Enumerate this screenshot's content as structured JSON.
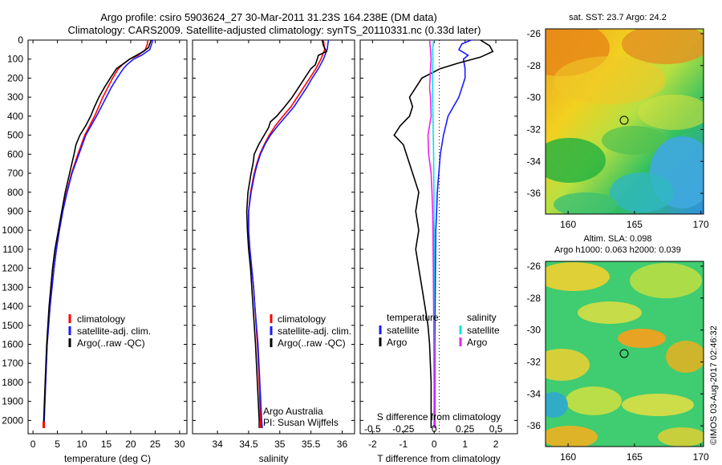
{
  "header": {
    "line1": "Argo profile: csiro 5903624_27 30-Mar-2011 31.23S 164.238E (DM data)",
    "line2": "Climatology: CARS2009. Satellite-adjusted climatology: synTS_20110331.nc (0.33d later)"
  },
  "footer": {
    "credit": "©IMOS 03-Aug-2017 02:46:32"
  },
  "colors": {
    "climatology": "#ff0000",
    "satellite": "#1a1aff",
    "argo": "#000000",
    "s_satellite": "#00e5e5",
    "s_argo": "#ee22ee"
  },
  "chart_data": [
    {
      "id": "temperature",
      "type": "line",
      "xlabel": "temperature (deg C)",
      "xlim": [
        -1,
        31.5
      ],
      "xticks": [
        0,
        5,
        10,
        15,
        20,
        25,
        30
      ],
      "ylim": [
        2070,
        0
      ],
      "yticks": [
        0,
        100,
        200,
        300,
        400,
        500,
        600,
        700,
        800,
        900,
        1000,
        1100,
        1200,
        1300,
        1400,
        1500,
        1600,
        1700,
        1800,
        1900,
        2000
      ],
      "legend": [
        "climatology",
        "satellite-adj. clim.",
        "Argo(..raw -QC)"
      ],
      "legend_position": "center",
      "series": [
        {
          "name": "climatology",
          "color": "#ff0000",
          "depth": [
            0,
            20,
            50,
            80,
            100,
            130,
            150,
            200,
            250,
            300,
            400,
            500,
            600,
            700,
            800,
            900,
            1000,
            1100,
            1200,
            1400,
            1600,
            1800,
            2000,
            2040
          ],
          "values": [
            23.5,
            23.4,
            23.0,
            21.5,
            19.8,
            18.3,
            17.5,
            16.3,
            15.3,
            14.3,
            12.6,
            10.6,
            9.2,
            7.9,
            6.9,
            6.1,
            5.4,
            4.8,
            4.3,
            3.5,
            2.9,
            2.6,
            2.3,
            2.2
          ]
        },
        {
          "name": "satellite-adj. clim.",
          "color": "#1a1aff",
          "depth": [
            0,
            20,
            50,
            80,
            100,
            130,
            150,
            200,
            250,
            300,
            400,
            500,
            600,
            700,
            800,
            900,
            1000,
            1100,
            1200,
            1400,
            1600,
            1800,
            2000,
            2040
          ],
          "values": [
            24.5,
            24.3,
            23.9,
            22.2,
            20.6,
            19.2,
            18.5,
            17.2,
            16.0,
            15.0,
            13.0,
            10.8,
            9.4,
            8.0,
            7.0,
            6.1,
            5.4,
            4.8,
            4.3,
            3.5,
            2.9,
            2.6,
            2.3,
            2.2
          ]
        },
        {
          "name": "Argo(..raw -QC)",
          "color": "#000000",
          "depth": [
            0,
            20,
            40,
            60,
            80,
            100,
            130,
            150,
            200,
            250,
            300,
            350,
            400,
            450,
            500,
            550,
            600,
            700,
            800,
            900,
            1000,
            1100,
            1200,
            1400,
            1600,
            1800,
            2000,
            2040
          ],
          "values": [
            24.2,
            23.9,
            23.6,
            22.6,
            21.2,
            19.8,
            18.2,
            17.1,
            15.8,
            14.6,
            13.5,
            12.6,
            11.8,
            10.8,
            9.6,
            8.8,
            8.4,
            7.5,
            6.6,
            5.9,
            5.2,
            4.5,
            4.0,
            3.3,
            2.8,
            2.5,
            2.2,
            2.2
          ]
        }
      ]
    },
    {
      "id": "salinity",
      "type": "line",
      "xlabel": "salinity",
      "xlim": [
        33.6,
        36.2
      ],
      "xticks": [
        34,
        34.5,
        35,
        35.5,
        36
      ],
      "ylim": [
        2070,
        0
      ],
      "legend": [
        "climatology",
        "satellite-adj. clim.",
        "Argo(..raw -QC)"
      ],
      "legend_position": "center",
      "annotations": [
        "Argo Australia",
        "PI: Susan Wijffels"
      ],
      "series": [
        {
          "name": "climatology",
          "color": "#ff0000",
          "depth": [
            0,
            50,
            100,
            150,
            200,
            250,
            300,
            350,
            400,
            450,
            500,
            550,
            600,
            650,
            700,
            800,
            900,
            1000,
            1100,
            1200,
            1300,
            1400,
            1600,
            1800,
            2000,
            2040
          ],
          "values": [
            35.7,
            35.72,
            35.66,
            35.58,
            35.48,
            35.38,
            35.28,
            35.18,
            35.05,
            34.93,
            34.83,
            34.75,
            34.68,
            34.63,
            34.59,
            34.53,
            34.5,
            34.5,
            34.52,
            34.55,
            34.58,
            34.6,
            34.64,
            34.67,
            34.69,
            34.7
          ]
        },
        {
          "name": "satellite-adj. clim.",
          "color": "#1a1aff",
          "depth": [
            0,
            50,
            100,
            150,
            200,
            250,
            300,
            350,
            400,
            450,
            500,
            550,
            600,
            650,
            700,
            800,
            900,
            1000,
            1100,
            1200,
            1300,
            1400,
            1600,
            1800,
            2000,
            2040
          ],
          "values": [
            35.78,
            35.76,
            35.7,
            35.62,
            35.52,
            35.43,
            35.33,
            35.23,
            35.1,
            34.97,
            34.85,
            34.76,
            34.69,
            34.64,
            34.6,
            34.54,
            34.5,
            34.5,
            34.52,
            34.55,
            34.58,
            34.6,
            34.65,
            34.68,
            34.71,
            34.72
          ]
        },
        {
          "name": "Argo(..raw -QC)",
          "color": "#000000",
          "depth": [
            0,
            30,
            60,
            80,
            100,
            130,
            150,
            200,
            250,
            300,
            350,
            400,
            430,
            460,
            500,
            550,
            600,
            650,
            700,
            800,
            900,
            1000,
            1100,
            1200,
            1400,
            1600,
            1800,
            2000,
            2040
          ],
          "values": [
            35.68,
            35.7,
            35.75,
            35.62,
            35.6,
            35.57,
            35.5,
            35.4,
            35.3,
            35.2,
            35.08,
            34.95,
            34.85,
            34.82,
            34.75,
            34.66,
            34.59,
            34.57,
            34.54,
            34.49,
            34.47,
            34.48,
            34.5,
            34.53,
            34.57,
            34.61,
            34.64,
            34.67,
            34.67
          ]
        }
      ]
    },
    {
      "id": "difference",
      "type": "line",
      "xlabel": "T difference from climatology",
      "x2label": "S difference from climatology",
      "xlim": [
        -2.4,
        2.7
      ],
      "xticks": [
        -2,
        -1,
        0,
        1,
        2
      ],
      "xticks2": [
        -0.5,
        -0.25,
        0,
        0.25,
        0.5
      ],
      "x2ticklabels": [
        "-0.5",
        "-0.25",
        "0",
        "0.25",
        "0.5"
      ],
      "ylim": [
        2070,
        0
      ],
      "legend_groups": [
        {
          "title": "temperature",
          "items": [
            "satellite",
            "Argo"
          ]
        },
        {
          "title": "salinity",
          "items": [
            "satellite",
            "Argo"
          ]
        }
      ],
      "series": [
        {
          "name": "temperature satellite",
          "color": "#1a1aff",
          "depth": [
            0,
            20,
            50,
            80,
            100,
            150,
            200,
            300,
            400,
            500,
            600,
            700,
            800,
            900,
            1000,
            1200,
            1400,
            1600,
            1800,
            2000,
            2040
          ],
          "values": [
            1.2,
            0.9,
            0.8,
            1.1,
            0.95,
            1.0,
            1.0,
            0.8,
            0.45,
            0.3,
            0.2,
            0.15,
            0.1,
            0.08,
            0.05,
            0.04,
            0.03,
            0.02,
            0.02,
            0.02,
            0.02
          ]
        },
        {
          "name": "temperature Argo",
          "color": "#000000",
          "depth": [
            0,
            30,
            60,
            90,
            120,
            150,
            200,
            250,
            300,
            350,
            400,
            450,
            500,
            550,
            600,
            700,
            800,
            900,
            1000,
            1100,
            1200,
            1300,
            1400,
            1500,
            1600,
            1800,
            2000,
            2040
          ],
          "values": [
            1.5,
            1.8,
            1.9,
            1.5,
            0.8,
            0.2,
            -0.4,
            -0.6,
            -0.8,
            -0.7,
            -0.8,
            -1.1,
            -1.3,
            -1.0,
            -0.9,
            -0.7,
            -0.5,
            -0.6,
            -0.5,
            -0.6,
            -0.5,
            -0.4,
            -0.3,
            -0.2,
            -0.15,
            -0.1,
            -0.1,
            -0.1
          ]
        },
        {
          "name": "salinity satellite",
          "color": "#00e5e5",
          "depth": [
            0,
            50,
            100,
            150,
            200,
            300,
            400,
            500,
            600,
            800,
            1000,
            1200,
            1400,
            1600,
            1800,
            2000,
            2040
          ],
          "values": [
            -0.02,
            -0.05,
            -0.04,
            -0.05,
            -0.05,
            -0.05,
            -0.04,
            -0.03,
            -0.02,
            -0.01,
            0,
            0,
            0,
            0,
            0,
            0,
            0
          ]
        },
        {
          "name": "salinity Argo",
          "color": "#ee22ee",
          "depth": [
            0,
            50,
            100,
            150,
            200,
            250,
            300,
            400,
            500,
            600,
            700,
            800,
            900,
            1000,
            1200,
            1400,
            1600,
            1800,
            2000,
            2040
          ],
          "values": [
            -0.15,
            -0.12,
            -0.1,
            -0.12,
            -0.13,
            -0.15,
            -0.12,
            -0.1,
            -0.2,
            -0.18,
            -0.1,
            -0.07,
            -0.05,
            -0.04,
            -0.03,
            -0.02,
            -0.01,
            0,
            0,
            0
          ]
        }
      ]
    },
    {
      "id": "sst_map",
      "type": "heatmap",
      "title": "sat. SST: 23.7 Argo: 24.2",
      "xlim": [
        158.3,
        170.2
      ],
      "ylim": [
        -37.3,
        -25.7
      ],
      "xticks": [
        160,
        165,
        170
      ],
      "yticks": [
        -26,
        -28,
        -30,
        -32,
        -34,
        -36
      ],
      "marker": {
        "lon": 164.24,
        "lat": -31.23
      }
    },
    {
      "id": "sla_map",
      "type": "heatmap",
      "title_line1": "Altim. SLA: 0.098",
      "title_line2": "Argo h1000: 0.063 h2000: 0.039",
      "xlim": [
        158.3,
        170.2
      ],
      "ylim": [
        -37.3,
        -25.7
      ],
      "xticks": [
        160,
        165,
        170
      ],
      "yticks": [
        -26,
        -28,
        -30,
        -32,
        -34,
        -36
      ],
      "marker": {
        "lon": 164.24,
        "lat": -31.23
      }
    }
  ]
}
